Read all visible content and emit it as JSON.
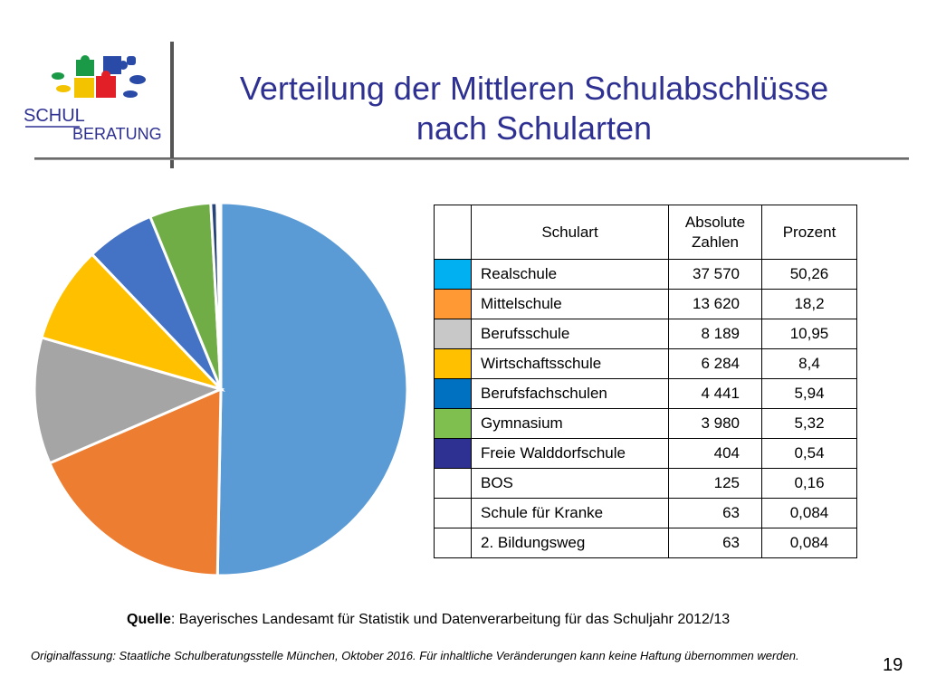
{
  "logo": {
    "line1": "SCHUL",
    "line2": "BERATUNG"
  },
  "title": {
    "line1": "Verteilung der Mittleren Schulabschlüsse",
    "line2": "nach Schularten"
  },
  "table": {
    "headers": {
      "schulart": "Schulart",
      "absolute_1": "Absolute",
      "absolute_2": "Zahlen",
      "prozent": "Prozent"
    },
    "rows": [
      {
        "name": "Realschule",
        "absolute": "37 570",
        "percent": "50,26",
        "color": "#00b0f0"
      },
      {
        "name": "Mittelschule",
        "absolute": "13 620",
        "percent": "18,2",
        "color": "#ff9933"
      },
      {
        "name": "Berufsschule",
        "absolute": "8 189",
        "percent": "10,95",
        "color": "#c8c8c8"
      },
      {
        "name": "Wirtschaftsschule",
        "absolute": "6 284",
        "percent": "8,4",
        "color": "#ffc000"
      },
      {
        "name": "Berufsfachschulen",
        "absolute": "4 441",
        "percent": "5,94",
        "color": "#0070c0"
      },
      {
        "name": "Gymnasium",
        "absolute": "3 980",
        "percent": "5,32",
        "color": "#7fbf4f"
      },
      {
        "name": "Freie Walddorfschule",
        "absolute": "404",
        "percent": "0,54",
        "color": "#2e3192"
      },
      {
        "name": "BOS",
        "absolute": "125",
        "percent": "0,16",
        "color": "#ffffff"
      },
      {
        "name": "Schule für Kranke",
        "absolute": "63",
        "percent": "0,084",
        "color": "#ffffff"
      },
      {
        "name": "2. Bildungsweg",
        "absolute": "63",
        "percent": "0,084",
        "color": "#ffffff"
      }
    ]
  },
  "chart_data": {
    "type": "pie",
    "categories": [
      "Realschule",
      "Mittelschule",
      "Berufsschule",
      "Wirtschaftsschule",
      "Berufsfachschulen",
      "Gymnasium",
      "Freie Walddorfschule",
      "BOS",
      "Schule für Kranke",
      "2. Bildungsweg"
    ],
    "values": [
      50.26,
      18.2,
      10.95,
      8.4,
      5.94,
      5.32,
      0.54,
      0.16,
      0.084,
      0.084
    ],
    "colors": [
      "#5b9bd5",
      "#ed7d31",
      "#a5a5a5",
      "#ffc000",
      "#4472c4",
      "#70ad47",
      "#264478",
      "#9e480e",
      "#636363",
      "#997300"
    ]
  },
  "source": {
    "label": "Quelle",
    "text": ": Bayerisches Landesamt für Statistik und Datenverarbeitung für das Schuljahr 2012/13"
  },
  "footer": "Originalfassung: Staatliche Schulberatungsstelle München, Oktober 2016.  Für inhaltliche Veränderungen kann keine Haftung übernommen werden.",
  "page_number": "19"
}
